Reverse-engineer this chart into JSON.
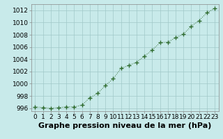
{
  "x": [
    0,
    1,
    2,
    3,
    4,
    5,
    6,
    7,
    8,
    9,
    10,
    11,
    12,
    13,
    14,
    15,
    16,
    17,
    18,
    19,
    20,
    21,
    22,
    23
  ],
  "y": [
    996.2,
    996.1,
    996.0,
    996.1,
    996.2,
    996.2,
    996.5,
    997.7,
    998.4,
    999.7,
    1000.8,
    1002.5,
    1003.0,
    1003.5,
    1004.5,
    1005.5,
    1006.7,
    1006.8,
    1007.5,
    1008.1,
    1009.4,
    1010.3,
    1011.6,
    1012.3
  ],
  "line_color": "#2d6a2d",
  "marker": "+",
  "marker_size": 4,
  "marker_linewidth": 1.0,
  "bg_color": "#c8eaea",
  "grid_color": "#a0c8c8",
  "xlabel": "Graphe pression niveau de la mer (hPa)",
  "xlabel_fontsize": 8,
  "tick_fontsize": 6.5,
  "ylim": [
    995.5,
    1013.0
  ],
  "yticks": [
    996,
    998,
    1000,
    1002,
    1004,
    1006,
    1008,
    1010,
    1012
  ],
  "xticks": [
    0,
    1,
    2,
    3,
    4,
    5,
    6,
    7,
    8,
    9,
    10,
    11,
    12,
    13,
    14,
    15,
    16,
    17,
    18,
    19,
    20,
    21,
    22,
    23
  ],
  "line_width": 0.7,
  "spine_color": "#888888"
}
